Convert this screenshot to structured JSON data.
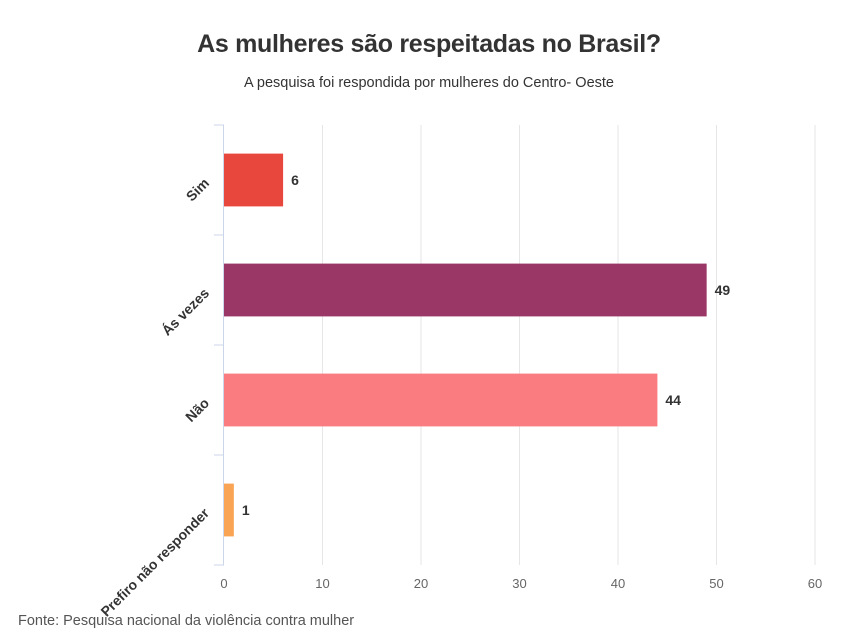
{
  "chart_data": {
    "type": "bar",
    "orientation": "horizontal",
    "title": "As mulheres são respeitadas no Brasil?",
    "subtitle": "A pesquisa foi respondida por mulheres do Centro- Oeste",
    "categories": [
      "Sim",
      "Ás vezes",
      "Não",
      "Prefiro não responder"
    ],
    "values": [
      6,
      49,
      44,
      1
    ],
    "colors": [
      "#e8473e",
      "#9b3767",
      "#fa7b80",
      "#f9a455"
    ],
    "xlim": [
      0,
      60
    ],
    "xticks": [
      0,
      10,
      20,
      30,
      40,
      50,
      60
    ],
    "grid": true,
    "data_labels": true
  },
  "source": "Fonte: Pesquisa nacional da violência contra mulher"
}
